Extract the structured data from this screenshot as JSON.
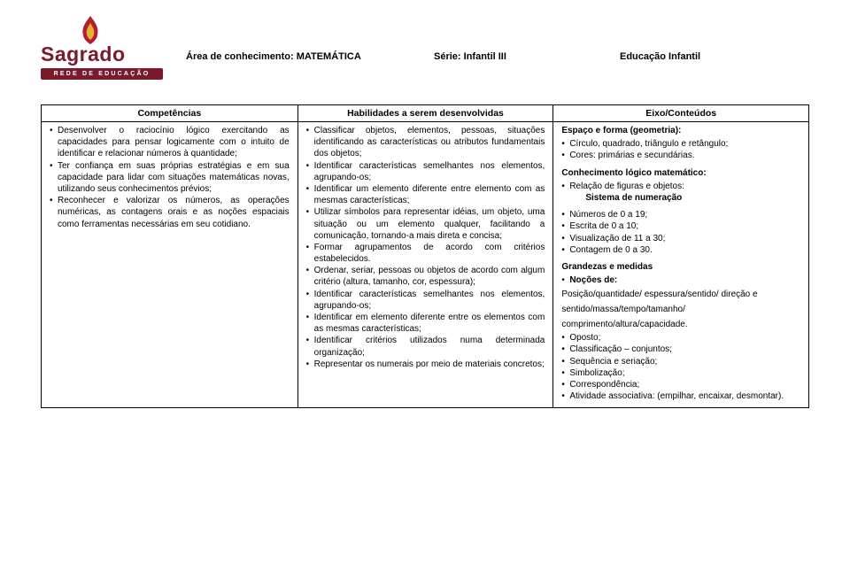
{
  "logo": {
    "main": "Sagrado",
    "sub": "REDE DE EDUCAÇÃO"
  },
  "header": {
    "area_label": "Área de conhecimento:",
    "area_value": "MATEMÁTICA",
    "serie_label": "Série:",
    "serie_value": "Infantil III",
    "educ": "Educação Infantil"
  },
  "columns": {
    "comp_title": "Competências",
    "hab_title": "Habilidades a serem desenvolvidas",
    "eixo_title": "Eixo/Conteúdos"
  },
  "competencias": [
    "Desenvolver o raciocínio lógico exercitando as capacidades para pensar logicamente com o intuito de identificar e relacionar números à quantidade;",
    "Ter confiança em suas próprias estratégias e em sua capacidade para lidar com situações matemáticas novas, utilizando seus conhecimentos prévios;",
    "Reconhecer e valorizar os números, as operações numéricas, as contagens orais e as noções espaciais como ferramentas necessárias em seu cotidiano."
  ],
  "habilidades": [
    "Classificar objetos, elementos, pessoas, situações identificando as características ou atributos fundamentais dos objetos;",
    "Identificar características semelhantes nos elementos, agrupando-os;",
    "Identificar um elemento diferente entre elemento com as mesmas características;",
    "Utilizar símbolos para representar idéias, um objeto, uma situação ou um elemento qualquer, facilitando a comunicação, tornando-a mais direta e concisa;",
    "Formar agrupamentos de acordo com critérios estabelecidos.",
    "Ordenar, seriar, pessoas ou objetos de acordo com algum critério (altura, tamanho, cor, espessura);",
    "Identificar características semelhantes nos elementos, agrupando-os;",
    "Identificar em elemento diferente entre os elementos com as mesmas características;",
    "Identificar critérios utilizados numa determinada organização;",
    "Representar os numerais por meio de materiais concretos;"
  ],
  "eixo": {
    "s1_title": "Espaço e forma (geometria):",
    "s1": [
      "Círculo, quadrado, triângulo e retângulo;",
      "Cores: primárias e secundárias."
    ],
    "s2_title": "Conhecimento lógico matemático:",
    "s2a": "Relação de figuras e objetos:",
    "s2a_sub": "Sistema de numeração",
    "s2b": [
      "Números de 0 a 19;",
      "Escrita de 0 a 10;",
      "Visualização de 11 a 30;",
      "Contagem de 0 a 30."
    ],
    "s3_title": "Grandezas e medidas",
    "s3a": "Noções de:",
    "s3a_lines": "Posição/quantidade/ espessura/sentido/ direção e sentido/massa/tempo/tamanho/ comprimento/altura/capacidade.",
    "s3b": [
      "Oposto;",
      "Classificação – conjuntos;",
      "Sequência e seriação;",
      "Simbolização;",
      "Correspondência;",
      "Atividade associativa: (empilhar, encaixar, desmontar)."
    ]
  }
}
